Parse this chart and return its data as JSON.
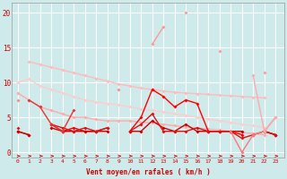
{
  "xlabel": "Vent moyen/en rafales ( km/h )",
  "background_color": "#ceeaea",
  "grid_color": "#ffffff",
  "ylim": [
    -0.8,
    21.5
  ],
  "xlim": [
    -0.5,
    23.8
  ],
  "lines": [
    {
      "x": [
        1,
        2,
        3,
        4,
        5,
        6,
        7,
        8,
        9,
        10,
        11,
        12,
        13,
        14,
        15,
        16,
        17,
        18,
        19,
        20,
        21,
        22
      ],
      "y": [
        13.0,
        12.6,
        12.2,
        11.8,
        11.4,
        11.0,
        10.6,
        10.2,
        9.8,
        9.5,
        9.2,
        9.0,
        8.8,
        8.6,
        8.5,
        8.4,
        8.3,
        8.2,
        8.1,
        8.0,
        7.9,
        7.8
      ],
      "color": "#ffbbbb",
      "lw": 1.0,
      "marker": "D",
      "ms": 2.0
    },
    {
      "x": [
        0,
        1,
        2,
        3,
        4,
        5,
        6,
        7,
        8,
        9,
        10,
        11,
        12,
        13,
        14,
        15,
        16,
        17,
        18,
        19,
        20,
        21,
        22
      ],
      "y": [
        10.0,
        10.5,
        9.5,
        9.0,
        8.5,
        8.0,
        7.5,
        7.2,
        7.0,
        6.8,
        6.5,
        6.2,
        6.0,
        5.8,
        5.5,
        5.3,
        5.0,
        4.8,
        4.5,
        4.3,
        4.0,
        3.8,
        3.5
      ],
      "color": "#ffcccc",
      "lw": 1.0,
      "marker": "D",
      "ms": 2.0
    },
    {
      "x": [
        11,
        12,
        13,
        14,
        15,
        16,
        17,
        18,
        19,
        20,
        21,
        22,
        23
      ],
      "y": [
        null,
        15.5,
        18.0,
        null,
        20.0,
        null,
        null,
        14.5,
        null,
        null,
        null,
        11.5,
        null
      ],
      "color": "#ff9999",
      "lw": 1.0,
      "marker": "D",
      "ms": 2.0
    },
    {
      "x": [
        0,
        1,
        2,
        3,
        4,
        5,
        6,
        7,
        8,
        9,
        10,
        11,
        12,
        13,
        14,
        15,
        16,
        17,
        18,
        19,
        20,
        21,
        22
      ],
      "y": [
        8.5,
        7.5,
        6.5,
        6.0,
        5.5,
        5.0,
        5.0,
        4.7,
        4.5,
        4.5,
        4.5,
        4.3,
        4.2,
        4.0,
        3.8,
        3.6,
        3.5,
        3.3,
        3.2,
        3.0,
        2.8,
        2.7,
        2.5
      ],
      "color": "#ffaaaa",
      "lw": 1.0,
      "marker": "D",
      "ms": 2.0
    },
    {
      "x": [
        0,
        1,
        2,
        3,
        4,
        5,
        6,
        7,
        8,
        9,
        10,
        11,
        12,
        13,
        14,
        15,
        16,
        17,
        18,
        19,
        20,
        21,
        22,
        23
      ],
      "y": [
        7.5,
        null,
        null,
        null,
        null,
        null,
        null,
        null,
        null,
        9.0,
        null,
        null,
        9.0,
        null,
        null,
        7.5,
        null,
        null,
        null,
        null,
        null,
        null,
        null,
        null
      ],
      "color": "#ff8888",
      "lw": 1.0,
      "marker": "D",
      "ms": 2.0
    },
    {
      "x": [
        0,
        1,
        2,
        3,
        4,
        5,
        6,
        7,
        8,
        9,
        10,
        11,
        12,
        13,
        14,
        15,
        16,
        17,
        18,
        19,
        20,
        21,
        22,
        23
      ],
      "y": [
        3.0,
        2.5,
        null,
        4.0,
        3.0,
        3.5,
        3.0,
        3.0,
        3.5,
        null,
        3.0,
        5.0,
        9.0,
        8.0,
        6.5,
        7.5,
        7.0,
        3.0,
        3.0,
        3.0,
        2.5,
        null,
        3.0,
        2.5
      ],
      "color": "#ff0000",
      "lw": 1.0,
      "marker": "D",
      "ms": 2.0
    },
    {
      "x": [
        0,
        1,
        2,
        3,
        4,
        5,
        6,
        7,
        8,
        9,
        10,
        11,
        12,
        13,
        14,
        15,
        16,
        17,
        18,
        19,
        20,
        21,
        22,
        23
      ],
      "y": [
        3.0,
        2.5,
        null,
        3.5,
        3.0,
        3.0,
        3.0,
        3.0,
        3.0,
        null,
        3.0,
        3.0,
        4.5,
        3.5,
        3.0,
        4.0,
        3.0,
        3.0,
        3.0,
        3.0,
        3.0,
        null,
        3.0,
        2.5
      ],
      "color": "#cc0000",
      "lw": 1.0,
      "marker": "D",
      "ms": 2.0
    },
    {
      "x": [
        0,
        1,
        2,
        3,
        4,
        5,
        6,
        7,
        8,
        9,
        10,
        11,
        12,
        13,
        14,
        15,
        16,
        17,
        18,
        19,
        20,
        21,
        22,
        23
      ],
      "y": [
        3.5,
        null,
        null,
        4.0,
        3.5,
        3.0,
        3.5,
        3.0,
        3.5,
        null,
        3.0,
        4.0,
        5.5,
        3.0,
        3.0,
        3.0,
        3.5,
        3.0,
        3.0,
        3.0,
        2.0,
        2.5,
        3.0,
        2.5
      ],
      "color": "#dd1111",
      "lw": 1.0,
      "marker": "D",
      "ms": 2.0
    },
    {
      "x": [
        0,
        1,
        2,
        3,
        4,
        5
      ],
      "y": [
        null,
        7.5,
        6.5,
        4.0,
        3.0,
        6.0
      ],
      "color": "#ee3333",
      "lw": 1.0,
      "marker": "D",
      "ms": 2.0
    },
    {
      "x": [
        19,
        20,
        21,
        22,
        23
      ],
      "y": [
        3.0,
        0.0,
        2.5,
        3.0,
        5.0
      ],
      "color": "#ff7777",
      "lw": 1.0,
      "marker": "D",
      "ms": 2.0
    },
    {
      "x": [
        21,
        22,
        23
      ],
      "y": [
        11.0,
        3.0,
        5.0
      ],
      "color": "#ffaaaa",
      "lw": 1.0,
      "marker": "D",
      "ms": 2.0
    }
  ],
  "wind_direction_arrows": {
    "x": [
      0,
      1,
      2,
      3,
      4,
      5,
      6,
      7,
      8,
      9,
      10,
      11,
      12,
      13,
      14,
      15,
      16,
      17,
      18,
      19,
      20,
      21,
      22,
      23
    ],
    "color": "#cc0000"
  }
}
